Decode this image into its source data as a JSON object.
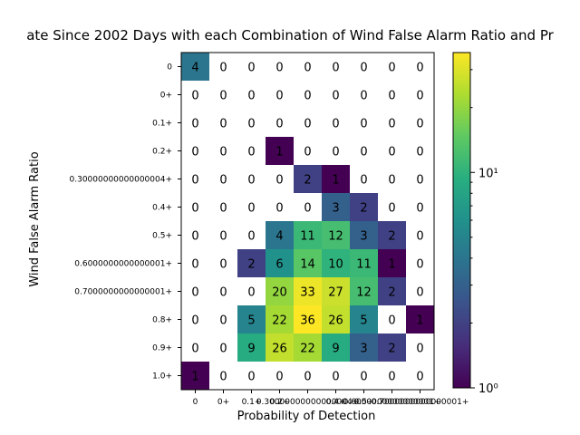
{
  "chart_data": {
    "type": "heatmap",
    "title": "ate Since 2002 Days with each Combination of Wind False Alarm Ratio and Pr",
    "xlabel": "Probability of Detection",
    "ylabel": "Wind False Alarm Ratio",
    "x_tick_labels": [
      "0",
      "0+",
      "0.1+",
      "0.2+",
      "0.30000000000000004+",
      "0.4+",
      "0.5+",
      "0.6000000000000001+",
      "0.7000000000000001+"
    ],
    "y_tick_labels": [
      "0",
      "0+",
      "0.1+",
      "0.2+",
      "0.30000000000000004+",
      "0.4+",
      "0.5+",
      "0.6000000000000001+",
      "0.7000000000000001+",
      "0.8+",
      "0.9+",
      "1.0+"
    ],
    "values": [
      [
        4,
        0,
        0,
        0,
        0,
        0,
        0,
        0,
        0
      ],
      [
        0,
        0,
        0,
        0,
        0,
        0,
        0,
        0,
        0
      ],
      [
        0,
        0,
        0,
        0,
        0,
        0,
        0,
        0,
        0
      ],
      [
        0,
        0,
        0,
        1,
        0,
        0,
        0,
        0,
        0
      ],
      [
        0,
        0,
        0,
        0,
        2,
        1,
        0,
        0,
        0
      ],
      [
        0,
        0,
        0,
        0,
        0,
        3,
        2,
        0,
        0
      ],
      [
        0,
        0,
        0,
        4,
        11,
        12,
        3,
        2,
        0
      ],
      [
        0,
        0,
        2,
        6,
        14,
        10,
        11,
        1,
        0
      ],
      [
        0,
        0,
        0,
        20,
        33,
        27,
        12,
        2,
        0
      ],
      [
        0,
        0,
        5,
        22,
        36,
        26,
        5,
        0,
        1
      ],
      [
        0,
        0,
        9,
        26,
        22,
        9,
        3,
        2,
        0
      ],
      [
        1,
        0,
        0,
        0,
        0,
        0,
        0,
        0,
        0
      ]
    ],
    "colormap": "viridis",
    "color_scale": "log",
    "zero_cells_colored": false,
    "colorbar": {
      "min": 1,
      "max": 36,
      "tick_labels": [
        "10⁰",
        "10¹"
      ],
      "tick_values": [
        1,
        10
      ]
    },
    "colors": {
      "background": "#ffffff",
      "text": "#000000"
    }
  }
}
